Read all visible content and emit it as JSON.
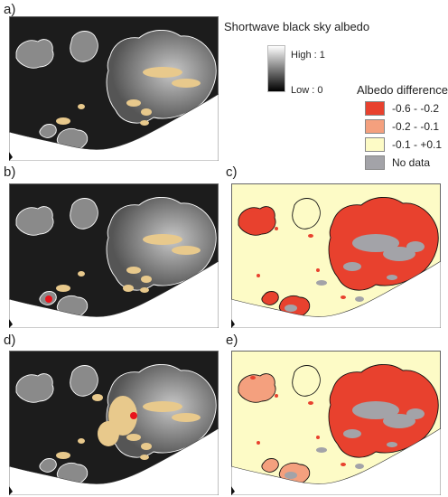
{
  "panels": [
    {
      "label": "a)",
      "kind": "albedo",
      "variant": "a"
    },
    {
      "label": "b)",
      "kind": "albedo",
      "variant": "b"
    },
    {
      "label": "c)",
      "kind": "difference",
      "variant": "c"
    },
    {
      "label": "d)",
      "kind": "albedo",
      "variant": "d"
    },
    {
      "label": "e)",
      "kind": "difference",
      "variant": "e"
    }
  ],
  "albedo_legend": {
    "title": "Shortwave black sky albedo",
    "high_label": "High : 1",
    "low_label": "Low : 0"
  },
  "difference_legend": {
    "title": "Albedo difference",
    "classes": [
      {
        "label": "-0.6 - -0.2",
        "color": "#e8412e"
      },
      {
        "label": "-0.2 - -0.1",
        "color": "#f4a07e"
      },
      {
        "label": "-0.1 - +0.1",
        "color": "#fdfbc6"
      },
      {
        "label": "No data",
        "color": "#a3a3a8"
      }
    ]
  },
  "colors": {
    "land_dark": "#1c1c1c",
    "glacier_light": "#9a9a9a",
    "nodata_tan": "#e8c98c",
    "sea": "#ffffff",
    "outline_white": "#ffffff",
    "outline_black": "#111111",
    "marker_red": "#e8141c"
  }
}
